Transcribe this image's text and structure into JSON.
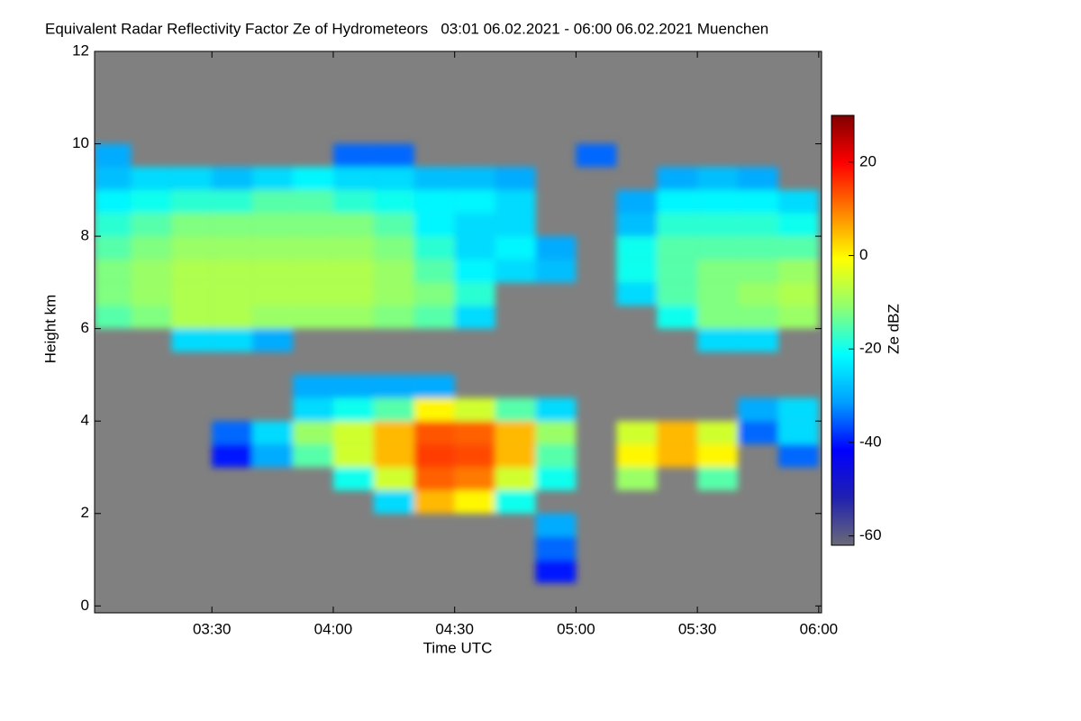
{
  "chart_data": {
    "type": "heatmap",
    "title": "Equivalent Radar Reflectivity Factor Ze of Hydrometeors   03:01 06.02.2021 - 06:00 06.02.2021 Muenchen",
    "x_label": "Time UTC",
    "y_label": "Height km",
    "colorbar_label": "Ze dBZ",
    "background": "#808080",
    "colormap": [
      "#6a6a78",
      "#2020b0",
      "#0000ff",
      "#00a0ff",
      "#00ffff",
      "#90ff70",
      "#ffff00",
      "#ff8000",
      "#ff0000",
      "#800000"
    ],
    "xlim": [
      181,
      360.7
    ],
    "xticks": [
      {
        "value": 210,
        "label": "03:30"
      },
      {
        "value": 240,
        "label": "04:00"
      },
      {
        "value": 270,
        "label": "04:30"
      },
      {
        "value": 300,
        "label": "05:00"
      },
      {
        "value": 330,
        "label": "05:30"
      },
      {
        "value": 360,
        "label": "06:00"
      }
    ],
    "ylim": [
      -0.15,
      12
    ],
    "yticks": [
      0,
      2,
      4,
      6,
      8,
      10,
      12
    ],
    "zlim": [
      -62,
      30
    ],
    "zticks": [
      -60,
      -40,
      -20,
      0,
      20
    ],
    "x_bins": [
      181,
      190,
      200,
      210,
      220,
      230,
      240,
      250,
      260,
      270,
      280,
      290,
      300,
      310,
      320,
      330,
      340,
      350,
      360
    ],
    "y_bins": [
      0,
      0.5,
      1,
      1.5,
      2,
      2.5,
      3,
      3.5,
      4,
      4.5,
      5,
      5.5,
      6,
      6.5,
      7,
      7.5,
      8,
      8.5,
      9,
      9.5,
      10,
      10.5,
      11,
      11.5,
      12
    ],
    "z": [
      [
        null,
        null,
        null,
        null,
        null,
        null,
        null,
        null,
        null,
        null,
        null,
        null,
        null,
        null,
        null,
        null,
        null,
        null
      ],
      [
        null,
        null,
        null,
        null,
        null,
        null,
        null,
        null,
        null,
        null,
        null,
        -40,
        null,
        null,
        null,
        null,
        null,
        null
      ],
      [
        null,
        null,
        null,
        null,
        null,
        null,
        null,
        null,
        null,
        null,
        null,
        -35,
        null,
        null,
        null,
        null,
        null,
        null
      ],
      [
        null,
        null,
        null,
        null,
        null,
        null,
        null,
        null,
        null,
        null,
        null,
        -30,
        null,
        null,
        null,
        null,
        null,
        null
      ],
      [
        null,
        null,
        null,
        null,
        null,
        null,
        null,
        -25,
        5,
        0,
        -20,
        null,
        null,
        null,
        null,
        null,
        null,
        null
      ],
      [
        null,
        null,
        null,
        null,
        null,
        null,
        -20,
        -5,
        12,
        10,
        -5,
        -20,
        null,
        -10,
        null,
        -15,
        null,
        null
      ],
      [
        null,
        null,
        null,
        -40,
        -30,
        -15,
        -5,
        5,
        15,
        14,
        5,
        -15,
        null,
        0,
        5,
        0,
        null,
        -35
      ],
      [
        null,
        null,
        null,
        -35,
        -25,
        -10,
        -5,
        5,
        13,
        12,
        5,
        -10,
        null,
        -5,
        5,
        -5,
        -35,
        -25
      ],
      [
        null,
        null,
        null,
        null,
        null,
        -25,
        -20,
        -15,
        0,
        -5,
        -15,
        -25,
        null,
        null,
        null,
        null,
        -30,
        -25
      ],
      [
        null,
        null,
        null,
        null,
        null,
        -30,
        -30,
        -30,
        -30,
        null,
        null,
        null,
        null,
        null,
        null,
        null,
        null,
        null
      ],
      [
        null,
        null,
        null,
        null,
        null,
        null,
        null,
        null,
        null,
        null,
        null,
        null,
        null,
        null,
        null,
        null,
        null,
        null
      ],
      [
        null,
        null,
        -25,
        -25,
        -30,
        null,
        null,
        null,
        null,
        null,
        null,
        null,
        null,
        null,
        null,
        -25,
        -25,
        null
      ],
      [
        -15,
        -12,
        -8,
        -8,
        -10,
        -10,
        -10,
        -12,
        -15,
        -25,
        null,
        null,
        null,
        null,
        -20,
        -12,
        -12,
        -10
      ],
      [
        -12,
        -10,
        -8,
        -8,
        -8,
        -8,
        -8,
        -10,
        -12,
        -18,
        null,
        null,
        null,
        -25,
        -15,
        -12,
        -10,
        -8
      ],
      [
        -12,
        -10,
        -8,
        -8,
        -8,
        -8,
        -8,
        -10,
        -15,
        -22,
        -25,
        -28,
        null,
        -20,
        -15,
        -12,
        -12,
        -10
      ],
      [
        -15,
        -12,
        -10,
        -10,
        -10,
        -10,
        -10,
        -12,
        -18,
        -25,
        -22,
        -30,
        null,
        -20,
        -15,
        -15,
        -15,
        -15
      ],
      [
        -18,
        -15,
        -12,
        -12,
        -12,
        -12,
        -12,
        -15,
        -22,
        -25,
        -25,
        null,
        null,
        -28,
        -18,
        -18,
        -18,
        -20
      ],
      [
        -22,
        -20,
        -18,
        -18,
        -15,
        -15,
        -18,
        -20,
        -22,
        -22,
        -25,
        null,
        null,
        -30,
        -22,
        -22,
        -22,
        -25
      ],
      [
        -28,
        -25,
        -25,
        -28,
        -25,
        -22,
        -25,
        -25,
        -28,
        -28,
        -30,
        null,
        null,
        null,
        -30,
        -28,
        -30,
        null
      ],
      [
        -30,
        null,
        null,
        null,
        null,
        null,
        -35,
        -35,
        null,
        null,
        null,
        null,
        -35,
        null,
        null,
        null,
        null,
        null
      ],
      [
        null,
        null,
        null,
        null,
        null,
        null,
        null,
        null,
        null,
        null,
        null,
        null,
        null,
        null,
        null,
        null,
        null,
        null
      ],
      [
        null,
        null,
        null,
        null,
        null,
        null,
        null,
        null,
        null,
        null,
        null,
        null,
        null,
        null,
        null,
        null,
        null,
        null
      ],
      [
        null,
        null,
        null,
        null,
        null,
        null,
        null,
        null,
        null,
        null,
        null,
        null,
        null,
        null,
        null,
        null,
        null,
        null
      ],
      [
        null,
        null,
        null,
        null,
        null,
        null,
        null,
        null,
        null,
        null,
        null,
        null,
        null,
        null,
        null,
        null,
        null,
        null
      ]
    ]
  }
}
